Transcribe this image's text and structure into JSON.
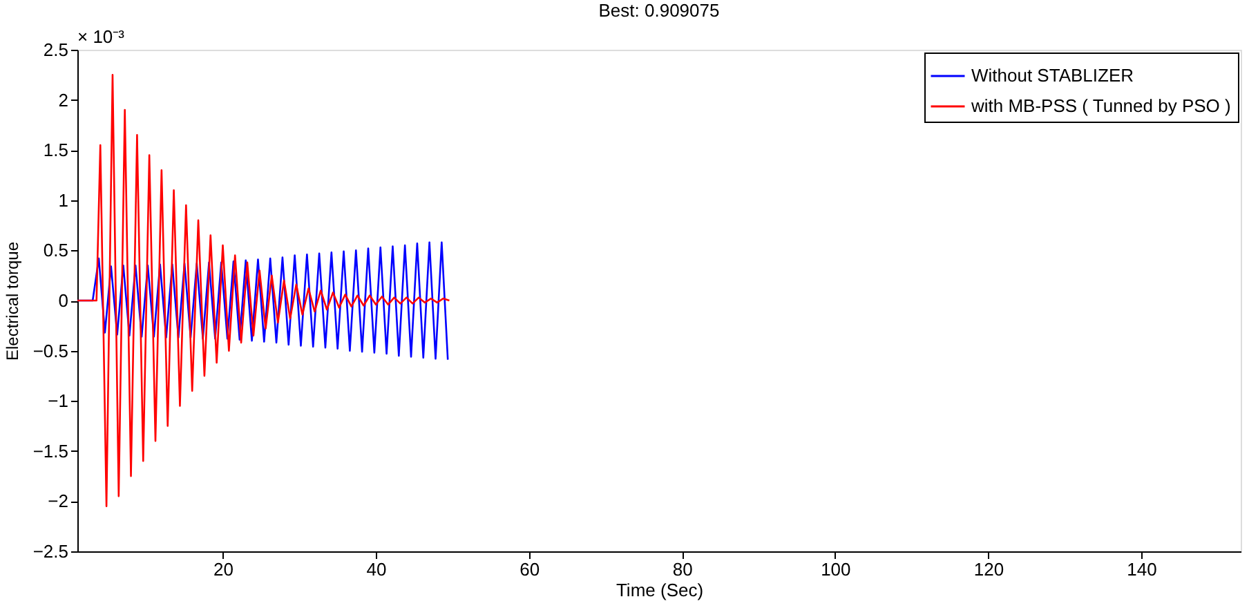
{
  "chart_data": {
    "type": "line",
    "title": "Best: 0.909075",
    "xlabel": "Time (Sec)",
    "ylabel": "Electrical torque",
    "annotations": [
      "× 10⁻³"
    ],
    "xlim": [
      1,
      153
    ],
    "xticks": [
      20,
      40,
      60,
      80,
      100,
      120,
      140
    ],
    "ylim": [
      -2.5,
      2.5
    ],
    "yticks": [
      -2.5,
      -2,
      -1.5,
      -1,
      -0.5,
      0,
      0.5,
      1,
      1.5,
      2,
      2.5
    ],
    "grid": false,
    "legend": "top right",
    "marker": "none",
    "line_style": "solid",
    "series": [
      {
        "name": "Without STABLIZER",
        "color": "#0000ff",
        "x": [
          1,
          3.0,
          3.8,
          4.6,
          5.4,
          6.2,
          7.0,
          7.8,
          8.6,
          9.4,
          10.2,
          11.0,
          11.8,
          12.6,
          13.4,
          14.2,
          15.0,
          15.8,
          16.6,
          17.4,
          18.2,
          19.0,
          19.8,
          20.6,
          21.4,
          22.2,
          23.0,
          23.8,
          24.6,
          25.4,
          26.2,
          27.0,
          27.8,
          28.6,
          29.4,
          30.2,
          31.0,
          31.8,
          32.6,
          33.4,
          34.2,
          35.0,
          35.8,
          36.6,
          37.4,
          38.2,
          39.0,
          39.8,
          40.6,
          41.4,
          42.2,
          43.0,
          43.8,
          44.6,
          45.4,
          46.2,
          47.0,
          47.8,
          48.6,
          49.4
        ],
        "values": [
          0,
          0,
          0.42,
          -0.32,
          0.34,
          -0.34,
          0.35,
          -0.35,
          0.35,
          -0.36,
          0.35,
          -0.36,
          0.36,
          -0.37,
          0.36,
          -0.37,
          0.37,
          -0.37,
          0.37,
          -0.38,
          0.38,
          -0.38,
          0.38,
          -0.38,
          0.39,
          -0.39,
          0.4,
          -0.4,
          0.41,
          -0.41,
          0.42,
          -0.42,
          0.43,
          -0.44,
          0.45,
          -0.45,
          0.46,
          -0.46,
          0.47,
          -0.47,
          0.48,
          -0.48,
          0.49,
          -0.5,
          0.5,
          -0.51,
          0.52,
          -0.52,
          0.53,
          -0.53,
          0.54,
          -0.55,
          0.55,
          -0.56,
          0.57,
          -0.57,
          0.58,
          -0.58,
          0.58,
          -0.59
        ]
      },
      {
        "name": "with MB-PSS ( Tunned by PSO )",
        "color": "#ff0000",
        "x": [
          1,
          3.5,
          4.0,
          4.8,
          5.6,
          6.4,
          7.2,
          8.0,
          8.8,
          9.6,
          10.4,
          11.2,
          12.0,
          12.8,
          13.6,
          14.4,
          15.2,
          16.0,
          16.8,
          17.6,
          18.4,
          19.2,
          20.0,
          20.8,
          21.6,
          22.4,
          23.2,
          24.0,
          24.8,
          25.6,
          26.4,
          27.2,
          28.0,
          28.8,
          29.6,
          30.4,
          31.2,
          32.0,
          32.8,
          33.6,
          34.4,
          35.2,
          36.0,
          36.8,
          37.6,
          38.4,
          39.2,
          40.0,
          40.8,
          41.6,
          42.4,
          43.2,
          44.0,
          44.8,
          45.6,
          46.4,
          47.2,
          48.0,
          48.8,
          49.6
        ],
        "values": [
          0,
          0,
          1.55,
          -2.05,
          2.25,
          -1.95,
          1.9,
          -1.75,
          1.65,
          -1.6,
          1.45,
          -1.4,
          1.3,
          -1.25,
          1.1,
          -1.05,
          0.95,
          -0.9,
          0.8,
          -0.75,
          0.65,
          -0.62,
          0.55,
          -0.5,
          0.45,
          -0.42,
          0.38,
          -0.35,
          0.3,
          -0.28,
          0.25,
          -0.22,
          0.2,
          -0.18,
          0.16,
          -0.14,
          0.12,
          -0.11,
          0.1,
          -0.09,
          0.08,
          -0.07,
          0.06,
          -0.06,
          0.05,
          -0.05,
          0.05,
          -0.04,
          0.04,
          -0.04,
          0.03,
          -0.03,
          0.03,
          -0.03,
          0.03,
          -0.02,
          0.02,
          -0.02,
          0.02,
          0.0
        ]
      }
    ]
  }
}
